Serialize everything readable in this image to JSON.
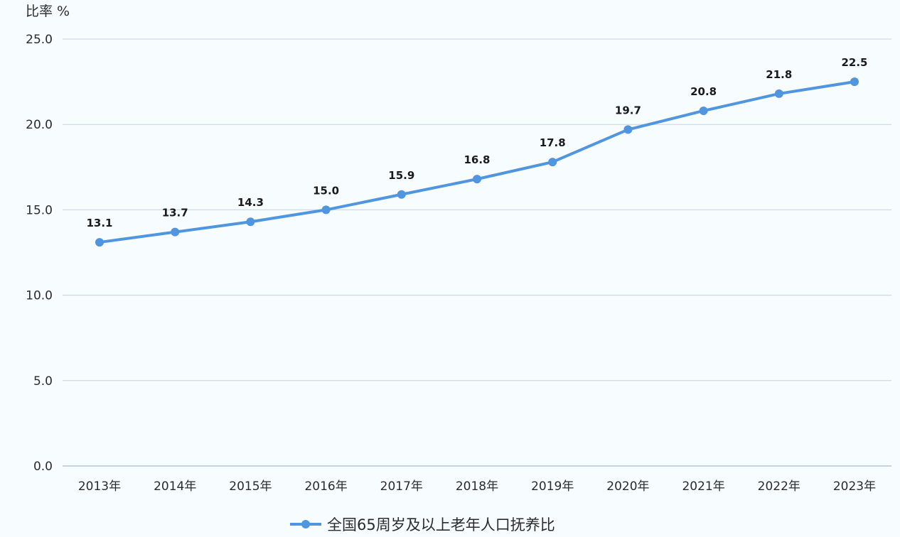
{
  "chart_data": {
    "type": "line",
    "ylabel": "比率 %",
    "ylim": [
      0,
      25
    ],
    "yticks": [
      "0.0",
      "5.0",
      "10.0",
      "15.0",
      "20.0",
      "25.0"
    ],
    "grid": true,
    "legend": "bottom-center",
    "categories": [
      "2013年",
      "2014年",
      "2015年",
      "2016年",
      "2017年",
      "2018年",
      "2019年",
      "2020年",
      "2021年",
      "2022年",
      "2023年"
    ],
    "series": [
      {
        "name": "全国65周岁及以上老年人口抚养比",
        "values": [
          13.1,
          13.7,
          14.3,
          15.0,
          15.9,
          16.8,
          17.8,
          19.7,
          20.8,
          21.8,
          22.5
        ],
        "labels": [
          "13.1",
          "13.7",
          "14.3",
          "15.0",
          "15.9",
          "16.8",
          "17.8",
          "19.7",
          "20.8",
          "21.8",
          "22.5"
        ],
        "color": "#4f95e0"
      }
    ],
    "gridColor": "#c8d0e6",
    "axisColor": "#9aa6c2"
  }
}
